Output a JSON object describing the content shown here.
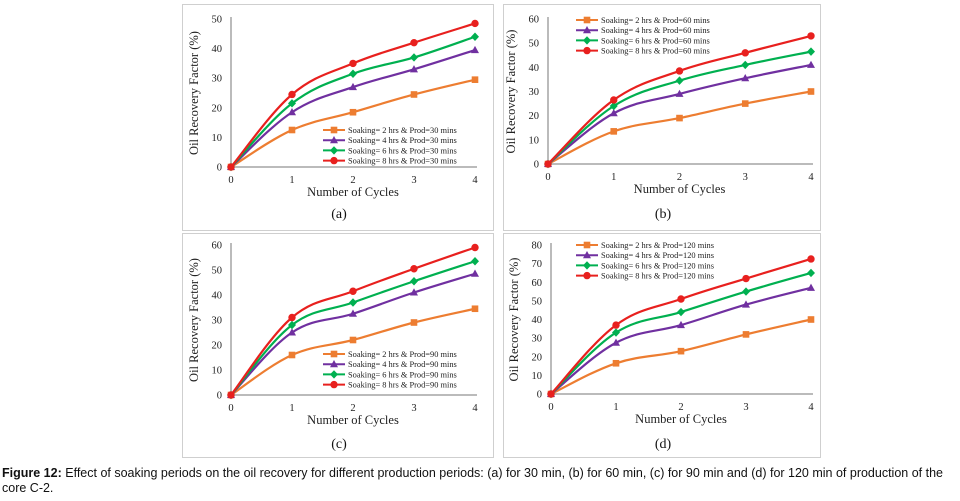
{
  "figure": {
    "caption_label": "Figure 12:",
    "caption_text": "Effect of soaking periods on the oil recovery for different production periods: (a) for 30 min, (b) for 60 min, (c) for 90 min and (d) for 120 min of production of the core C-2."
  },
  "colors": {
    "series": [
      "#ed7d31",
      "#7030a0",
      "#00b050",
      "#e8201e"
    ]
  },
  "chart_data": [
    {
      "panel_label": "(a)",
      "type": "line",
      "xlabel": "Number of Cycles",
      "ylabel": "Oil Recovery Factor (%)",
      "x": [
        0,
        1,
        2,
        3,
        4
      ],
      "ylim": [
        0,
        50
      ],
      "yticks": [
        0,
        10,
        20,
        30,
        40,
        50
      ],
      "legend_position": "bottom-right",
      "series": [
        {
          "name": "Soaking= 2 hrs & Prod=30 mins",
          "marker": "square",
          "values": [
            0,
            12.5,
            18.5,
            24.5,
            29.5
          ]
        },
        {
          "name": "Soaking= 4 hrs & Prod=30 mins",
          "marker": "triangle",
          "values": [
            0,
            18.5,
            27,
            33,
            39.5
          ]
        },
        {
          "name": "Soaking= 6 hrs & Prod=30 mins",
          "marker": "diamond",
          "values": [
            0,
            21.5,
            31.5,
            37,
            44
          ]
        },
        {
          "name": "Soaking= 8 hrs & Prod=30 mins",
          "marker": "circle",
          "values": [
            0,
            24.5,
            35,
            42,
            48.5
          ]
        }
      ]
    },
    {
      "panel_label": "(b)",
      "type": "line",
      "xlabel": "Number of Cycles",
      "ylabel": "Oil Recovery Factor (%)",
      "x": [
        0,
        1,
        2,
        3,
        4
      ],
      "ylim": [
        0,
        60
      ],
      "yticks": [
        0,
        10,
        20,
        30,
        40,
        50,
        60
      ],
      "legend_position": "top-left",
      "series": [
        {
          "name": "Soaking= 2 hrs & Prod=60 mins",
          "marker": "square",
          "values": [
            0,
            13.5,
            19,
            25,
            30
          ]
        },
        {
          "name": "Soaking= 4 hrs & Prod=60 mins",
          "marker": "triangle",
          "values": [
            0,
            21,
            29,
            35.5,
            41
          ]
        },
        {
          "name": "Soaking= 6 hrs & Prod=60 mins",
          "marker": "diamond",
          "values": [
            0,
            24,
            34.5,
            41,
            46.5
          ]
        },
        {
          "name": "Soaking= 8 hrs & Prod=60 mins",
          "marker": "circle",
          "values": [
            0,
            26.5,
            38.5,
            46,
            53
          ]
        }
      ]
    },
    {
      "panel_label": "(c)",
      "type": "line",
      "xlabel": "Number of Cycles",
      "ylabel": "Oil Recovery Factor (%)",
      "x": [
        0,
        1,
        2,
        3,
        4
      ],
      "ylim": [
        0,
        60
      ],
      "yticks": [
        0,
        10,
        20,
        30,
        40,
        50,
        60
      ],
      "legend_position": "bottom-right",
      "series": [
        {
          "name": "Soaking= 2 hrs & Prod=90 mins",
          "marker": "square",
          "values": [
            0,
            16,
            22,
            29,
            34.5
          ]
        },
        {
          "name": "Soaking= 4 hrs & Prod=90 mins",
          "marker": "triangle",
          "values": [
            0,
            25,
            32.5,
            41,
            48.5
          ]
        },
        {
          "name": "Soaking= 6 hrs & Prod=90 mins",
          "marker": "diamond",
          "values": [
            0,
            28,
            37,
            45.5,
            53.5
          ]
        },
        {
          "name": "Soaking= 8 hrs & Prod=90 mins",
          "marker": "circle",
          "values": [
            0,
            31,
            41.5,
            50.5,
            59
          ]
        }
      ]
    },
    {
      "panel_label": "(d)",
      "type": "line",
      "xlabel": "Number of Cycles",
      "ylabel": "Oil Recovery Factor (%)",
      "x": [
        0,
        1,
        2,
        3,
        4
      ],
      "ylim": [
        0,
        80
      ],
      "yticks": [
        0,
        10,
        20,
        30,
        40,
        50,
        60,
        70,
        80
      ],
      "legend_position": "top-left",
      "series": [
        {
          "name": "Soaking= 2 hrs & Prod=120 mins",
          "marker": "square",
          "values": [
            0,
            16.5,
            23,
            32,
            40
          ]
        },
        {
          "name": "Soaking= 4 hrs & Prod=120 mins",
          "marker": "triangle",
          "values": [
            0,
            27.5,
            37,
            48,
            57
          ]
        },
        {
          "name": "Soaking= 6 hrs & Prod=120 mins",
          "marker": "diamond",
          "values": [
            0,
            33,
            44,
            55,
            65
          ]
        },
        {
          "name": "Soaking= 8 hrs & Prod=120 mins",
          "marker": "circle",
          "values": [
            0,
            37,
            51,
            62,
            72.5
          ]
        }
      ]
    }
  ]
}
